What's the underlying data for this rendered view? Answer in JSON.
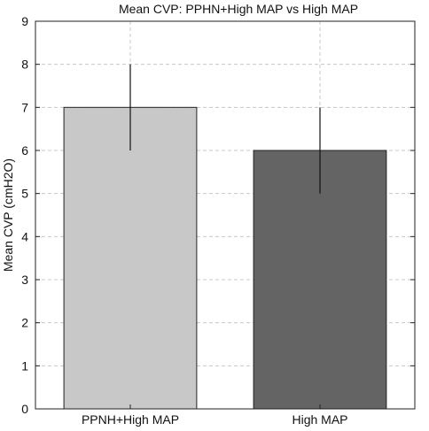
{
  "chart_data": {
    "type": "bar",
    "title": "Mean CVP: PPHN+High MAP vs High MAP",
    "xlabel": "",
    "ylabel": "Mean CVP (cmH2O)",
    "categories": [
      "PPNH+High MAP",
      "High MAP"
    ],
    "values": [
      7,
      6
    ],
    "error": [
      1,
      1
    ],
    "colors": [
      "#c8c8c8",
      "#646464"
    ],
    "ylim": [
      0,
      9
    ],
    "yticks": [
      0,
      1,
      2,
      3,
      4,
      5,
      6,
      7,
      8,
      9
    ],
    "grid": true,
    "legend": "none"
  }
}
